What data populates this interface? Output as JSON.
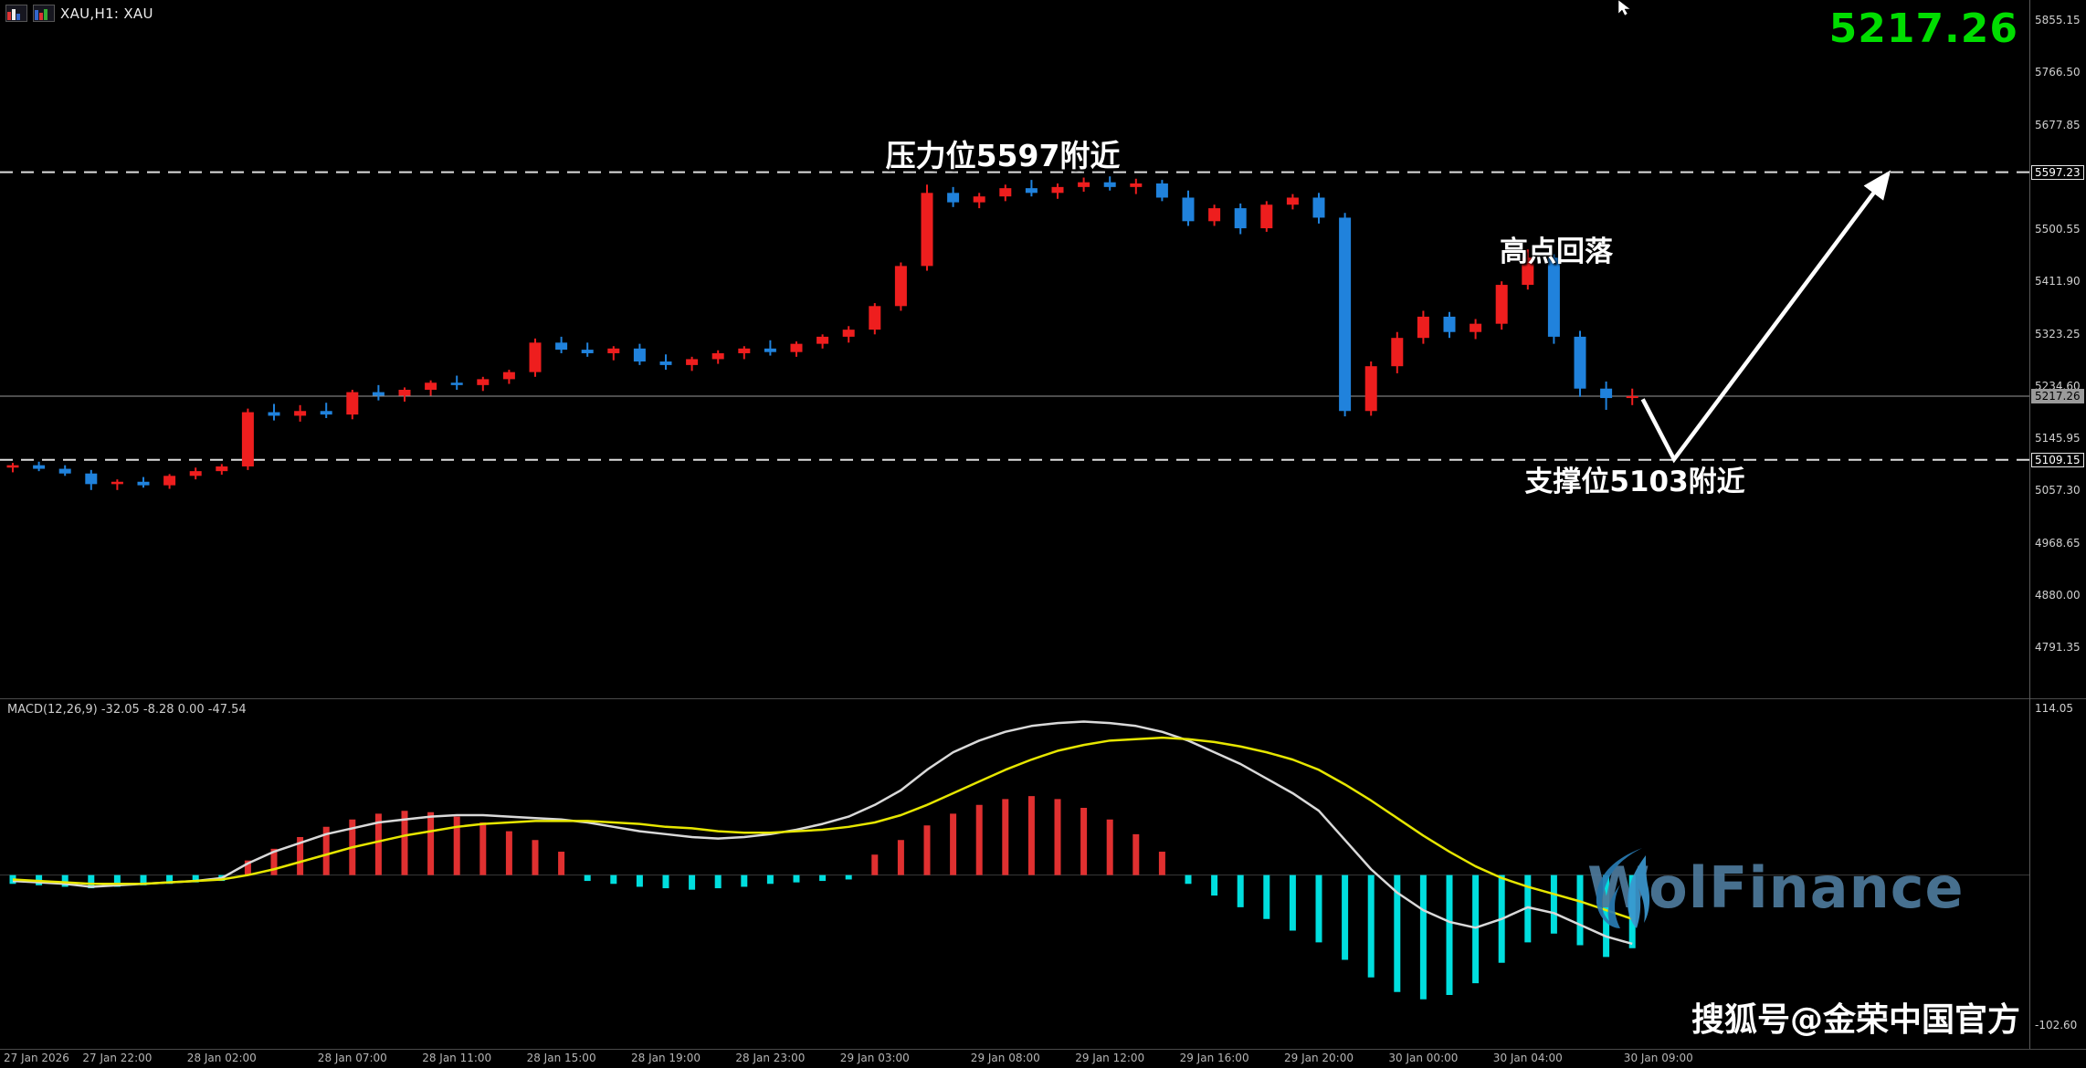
{
  "window": {
    "title": "XAU,H1: XAU",
    "quote": "5217.26",
    "quote_color": "#00dd00"
  },
  "annotations": {
    "resistance": "压力位5597附近",
    "peak": "高点回落",
    "support": "支撑位5103附近"
  },
  "watermark": {
    "brand": "WolFinance",
    "sohu": "搜狐号@金荣中国官方"
  },
  "macd_panel": {
    "label": "MACD(12,26,9) -32.05 -8.28 0.00 -47.54",
    "scale_top": "114.05",
    "scale_bottom": "-102.60"
  },
  "chart_data": {
    "type": "candlestick",
    "symbol": "XAU",
    "timeframe": "H1",
    "levels": {
      "resistance": 5597.23,
      "support": 5109.15,
      "current_price": 5217.26
    },
    "y_axis_labels": [
      5855.15,
      5766.5,
      5677.85,
      5500.55,
      5411.9,
      5323.25,
      5234.6,
      5145.95,
      5057.3,
      4968.65,
      4880.0,
      4791.35
    ],
    "level_tags": [
      {
        "value": 5597.23,
        "style": "outline"
      },
      {
        "value": 5217.26,
        "style": "solid"
      },
      {
        "value": 5109.15,
        "style": "outline"
      }
    ],
    "time_ticks": [
      {
        "label": "27 Jan 2026",
        "i": 0
      },
      {
        "label": "27 Jan 22:00",
        "i": 4
      },
      {
        "label": "28 Jan 02:00",
        "i": 8
      },
      {
        "label": "28 Jan 07:00",
        "i": 13
      },
      {
        "label": "28 Jan 11:00",
        "i": 17
      },
      {
        "label": "28 Jan 15:00",
        "i": 21
      },
      {
        "label": "28 Jan 19:00",
        "i": 25
      },
      {
        "label": "28 Jan 23:00",
        "i": 29
      },
      {
        "label": "29 Jan 03:00",
        "i": 33
      },
      {
        "label": "29 Jan 08:00",
        "i": 38
      },
      {
        "label": "29 Jan 12:00",
        "i": 42
      },
      {
        "label": "29 Jan 16:00",
        "i": 46
      },
      {
        "label": "29 Jan 20:00",
        "i": 50
      },
      {
        "label": "30 Jan 00:00",
        "i": 54
      },
      {
        "label": "30 Jan 04:00",
        "i": 58
      },
      {
        "label": "30 Jan 09:00",
        "i": 63
      }
    ],
    "candles": [
      [
        5096,
        5104,
        5088,
        5100
      ],
      [
        5100,
        5106,
        5090,
        5094
      ],
      [
        5094,
        5100,
        5082,
        5086
      ],
      [
        5086,
        5092,
        5058,
        5068
      ],
      [
        5068,
        5076,
        5058,
        5072
      ],
      [
        5072,
        5080,
        5062,
        5066
      ],
      [
        5066,
        5085,
        5060,
        5082
      ],
      [
        5082,
        5096,
        5076,
        5090
      ],
      [
        5090,
        5102,
        5084,
        5098
      ],
      [
        5098,
        5196,
        5092,
        5190
      ],
      [
        5190,
        5204,
        5176,
        5184
      ],
      [
        5184,
        5202,
        5174,
        5192
      ],
      [
        5192,
        5206,
        5180,
        5186
      ],
      [
        5186,
        5228,
        5178,
        5224
      ],
      [
        5224,
        5236,
        5210,
        5218
      ],
      [
        5218,
        5232,
        5208,
        5228
      ],
      [
        5228,
        5244,
        5218,
        5240
      ],
      [
        5240,
        5252,
        5228,
        5236
      ],
      [
        5236,
        5250,
        5226,
        5246
      ],
      [
        5246,
        5262,
        5238,
        5258
      ],
      [
        5258,
        5315,
        5250,
        5308
      ],
      [
        5308,
        5318,
        5290,
        5296
      ],
      [
        5296,
        5308,
        5284,
        5290
      ],
      [
        5290,
        5302,
        5278,
        5298
      ],
      [
        5298,
        5306,
        5270,
        5276
      ],
      [
        5276,
        5288,
        5262,
        5270
      ],
      [
        5270,
        5284,
        5260,
        5280
      ],
      [
        5280,
        5295,
        5272,
        5290
      ],
      [
        5290,
        5302,
        5280,
        5298
      ],
      [
        5298,
        5312,
        5286,
        5292
      ],
      [
        5292,
        5310,
        5284,
        5306
      ],
      [
        5306,
        5322,
        5298,
        5318
      ],
      [
        5318,
        5336,
        5308,
        5330
      ],
      [
        5330,
        5375,
        5322,
        5370
      ],
      [
        5370,
        5444,
        5362,
        5438
      ],
      [
        5438,
        5576,
        5430,
        5562
      ],
      [
        5562,
        5572,
        5538,
        5546
      ],
      [
        5546,
        5562,
        5536,
        5556
      ],
      [
        5556,
        5576,
        5548,
        5570
      ],
      [
        5570,
        5584,
        5556,
        5562
      ],
      [
        5562,
        5578,
        5552,
        5572
      ],
      [
        5572,
        5588,
        5564,
        5580
      ],
      [
        5580,
        5590,
        5566,
        5572
      ],
      [
        5572,
        5586,
        5560,
        5578
      ],
      [
        5578,
        5584,
        5548,
        5554
      ],
      [
        5554,
        5566,
        5506,
        5514
      ],
      [
        5514,
        5542,
        5506,
        5536
      ],
      [
        5536,
        5544,
        5492,
        5502
      ],
      [
        5502,
        5548,
        5496,
        5542
      ],
      [
        5542,
        5560,
        5534,
        5554
      ],
      [
        5554,
        5562,
        5510,
        5520
      ],
      [
        5520,
        5528,
        5183,
        5192
      ],
      [
        5192,
        5276,
        5184,
        5268
      ],
      [
        5268,
        5326,
        5256,
        5316
      ],
      [
        5316,
        5362,
        5306,
        5352
      ],
      [
        5352,
        5360,
        5316,
        5326
      ],
      [
        5326,
        5348,
        5314,
        5340
      ],
      [
        5340,
        5412,
        5330,
        5406
      ],
      [
        5406,
        5466,
        5398,
        5452
      ],
      [
        5452,
        5458,
        5306,
        5318
      ],
      [
        5318,
        5328,
        5216,
        5230
      ],
      [
        5230,
        5242,
        5194,
        5214
      ],
      [
        5214,
        5230,
        5202,
        5217.26
      ]
    ],
    "macd": {
      "histogram": [
        -6,
        -7,
        -8,
        -9,
        -8,
        -7,
        -6,
        -5,
        -4,
        10,
        18,
        26,
        33,
        38,
        42,
        44,
        43,
        40,
        36,
        30,
        24,
        16,
        -4,
        -6,
        -8,
        -9,
        -10,
        -9,
        -8,
        -6,
        -5,
        -4,
        -3,
        14,
        24,
        34,
        42,
        48,
        52,
        54,
        52,
        46,
        38,
        28,
        16,
        -6,
        -14,
        -22,
        -30,
        -38,
        -46,
        -58,
        -70,
        -80,
        -85,
        -82,
        -74,
        -60,
        -46,
        -40,
        -48,
        -56,
        -50
      ],
      "macd_line": [
        -4,
        -5,
        -6,
        -8,
        -7,
        -6,
        -5,
        -4,
        -2,
        8,
        16,
        22,
        28,
        32,
        36,
        38,
        40,
        41,
        41,
        40,
        39,
        38,
        36,
        33,
        30,
        28,
        26,
        25,
        26,
        28,
        31,
        35,
        40,
        48,
        58,
        72,
        84,
        92,
        98,
        102,
        104,
        105,
        104,
        102,
        98,
        92,
        84,
        76,
        66,
        56,
        44,
        24,
        4,
        -12,
        -24,
        -32,
        -36,
        -30,
        -22,
        -26,
        -34,
        -42,
        -47
      ],
      "signal_line": [
        -3,
        -4,
        -5,
        -6,
        -6,
        -6,
        -5,
        -4,
        -3,
        0,
        4,
        9,
        14,
        19,
        23,
        27,
        30,
        33,
        35,
        36,
        37,
        37,
        37,
        36,
        35,
        33,
        32,
        30,
        29,
        29,
        30,
        31,
        33,
        36,
        41,
        48,
        56,
        64,
        72,
        79,
        85,
        89,
        92,
        93,
        94,
        93,
        91,
        88,
        84,
        79,
        72,
        62,
        51,
        39,
        27,
        16,
        6,
        -2,
        -8,
        -13,
        -18,
        -24,
        -30
      ]
    },
    "projection_arrow": {
      "points": [
        {
          "index": 62.4,
          "price": 5212
        },
        {
          "index": 63.6,
          "price": 5110
        },
        {
          "index": 71.8,
          "price": 5595
        }
      ]
    },
    "colors": {
      "bull": "#ee1e1e",
      "bear": "#2082dc",
      "hist_up": "#e03030",
      "hist_down": "#00dede",
      "macd_line": "#d9d9d9",
      "signal_line": "#e6e600",
      "level_line": "#dedede",
      "current_line": "#9a9a9a"
    }
  }
}
